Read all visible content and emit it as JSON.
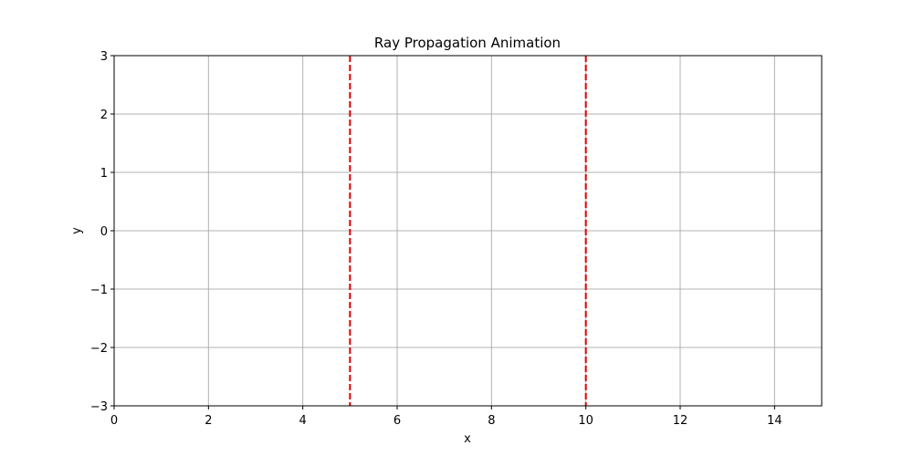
{
  "chart_data": {
    "type": "line",
    "title": "Ray Propagation Animation",
    "xlabel": "x",
    "ylabel": "y",
    "xlim": [
      0,
      15
    ],
    "ylim": [
      -3,
      3
    ],
    "xticks": [
      0,
      2,
      4,
      6,
      8,
      10,
      12,
      14
    ],
    "yticks": [
      -3,
      -2,
      -1,
      0,
      1,
      2,
      3
    ],
    "xtick_labels": [
      "0",
      "2",
      "4",
      "6",
      "8",
      "10",
      "12",
      "14"
    ],
    "ytick_labels": [
      "−3",
      "−2",
      "−1",
      "0",
      "1",
      "2",
      "3"
    ],
    "grid": true,
    "vertical_lines": [
      {
        "x": 5,
        "color": "#e00000",
        "style": "dashed"
      },
      {
        "x": 10,
        "color": "#e00000",
        "style": "dashed"
      }
    ],
    "series": []
  },
  "colors": {
    "grid": "#b0b0b0",
    "axes": "#000000",
    "marker_line": "#e00000"
  }
}
